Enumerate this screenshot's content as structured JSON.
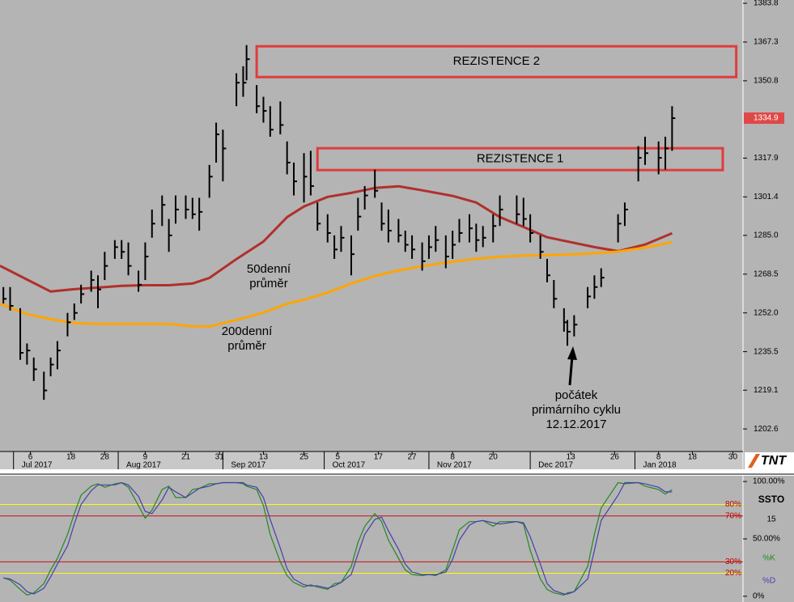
{
  "chart_data": [
    {
      "type": "ohlc",
      "xlim": [
        "2017-06-27",
        "2018-02-02"
      ],
      "ylim": [
        1193,
        1385.2
      ],
      "yticks": [
        1383.8,
        1367.3,
        1350.8,
        1317.9,
        1301.4,
        {
          "value": 1285,
          "label": "1285.0"
        },
        1268.5,
        {
          "value": 1252,
          "label": "1252.0"
        },
        1235.5,
        1219.1,
        1202.6
      ],
      "xticks": [
        {
          "value": "2017-07-06",
          "label": "6"
        },
        {
          "value": "2017-07-18",
          "label": "18"
        },
        {
          "value": "2017-07-28",
          "label": "28"
        },
        {
          "value": "2017-08-09",
          "label": "9"
        },
        {
          "value": "2017-08-21",
          "label": "21"
        },
        {
          "value": "2017-08-31",
          "label": "31"
        },
        {
          "value": "2017-09-13",
          "label": "13"
        },
        {
          "value": "2017-09-25",
          "label": "25"
        },
        {
          "value": "2017-10-05",
          "label": "5"
        },
        {
          "value": "2017-10-17",
          "label": "17"
        },
        {
          "value": "2017-10-27",
          "label": "27"
        },
        {
          "value": "2017-11-08",
          "label": "8"
        },
        {
          "value": "2017-11-20",
          "label": "20"
        },
        {
          "value": "2017-12-13",
          "label": "13"
        },
        {
          "value": "2017-12-26",
          "label": "26"
        },
        {
          "value": "2018-01-08",
          "label": "8"
        },
        {
          "value": "2018-01-18",
          "label": "18"
        },
        {
          "value": "2018-01-30",
          "label": "30"
        }
      ],
      "xmonths": [
        {
          "value": "2017-07-01",
          "label": "Jul 2017"
        },
        {
          "value": "2017-08-01",
          "label": "Aug 2017"
        },
        {
          "value": "2017-09-01",
          "label": "Sep 2017"
        },
        {
          "value": "2017-10-01",
          "label": "Oct 2017"
        },
        {
          "value": "2017-11-01",
          "label": "Nov 2017"
        },
        {
          "value": "2017-12-01",
          "label": "Dec 2017"
        },
        {
          "value": "2018-01-01",
          "label": "Jan 2018"
        }
      ],
      "color": "#000000",
      "last_price_color": "#e04848",
      "x": [
        "2017-06-28",
        "2017-06-30",
        "2017-07-03",
        "2017-07-05",
        "2017-07-07",
        "2017-07-10",
        "2017-07-12",
        "2017-07-14",
        "2017-07-17",
        "2017-07-19",
        "2017-07-21",
        "2017-07-24",
        "2017-07-26",
        "2017-07-28",
        "2017-07-31",
        "2017-08-02",
        "2017-08-04",
        "2017-08-07",
        "2017-08-09",
        "2017-08-11",
        "2017-08-14",
        "2017-08-16",
        "2017-08-18",
        "2017-08-21",
        "2017-08-23",
        "2017-08-25",
        "2017-08-28",
        "2017-08-30",
        "2017-09-01",
        "2017-09-05",
        "2017-09-07",
        "2017-09-08",
        "2017-09-11",
        "2017-09-13",
        "2017-09-15",
        "2017-09-18",
        "2017-09-20",
        "2017-09-22",
        "2017-09-25",
        "2017-09-27",
        "2017-09-29",
        "2017-10-02",
        "2017-10-04",
        "2017-10-06",
        "2017-10-09",
        "2017-10-11",
        "2017-10-13",
        "2017-10-16",
        "2017-10-18",
        "2017-10-20",
        "2017-10-23",
        "2017-10-25",
        "2017-10-27",
        "2017-10-30",
        "2017-11-01",
        "2017-11-03",
        "2017-11-06",
        "2017-11-08",
        "2017-11-10",
        "2017-11-13",
        "2017-11-15",
        "2017-11-17",
        "2017-11-20",
        "2017-11-22",
        "2017-11-27",
        "2017-11-29",
        "2017-12-01",
        "2017-12-04",
        "2017-12-06",
        "2017-12-08",
        "2017-12-11",
        "2017-12-12",
        "2017-12-14",
        "2017-12-18",
        "2017-12-20",
        "2017-12-22",
        "2017-12-27",
        "2017-12-29",
        "2018-01-02",
        "2018-01-04",
        "2018-01-08",
        "2018-01-10",
        "2018-01-12"
      ],
      "high": [
        1263,
        1263,
        1254,
        1239,
        1233,
        1227,
        1233,
        1240,
        1252,
        1256,
        1264,
        1270,
        1268,
        1278,
        1283,
        1283,
        1282,
        1270,
        1282,
        1296,
        1302,
        1292,
        1302,
        1302,
        1301,
        1301,
        1315,
        1333,
        1330,
        1354,
        1357,
        1366,
        1349,
        1344,
        1340,
        1342,
        1325,
        1316,
        1320,
        1321,
        1299,
        1294,
        1285,
        1289,
        1285,
        1301,
        1306,
        1313,
        1299,
        1296,
        1292,
        1287,
        1285,
        1282,
        1285,
        1289,
        1285,
        1287,
        1292,
        1294,
        1290,
        1289,
        1294,
        1302,
        1302,
        1301,
        1294,
        1285,
        1275,
        1266,
        1254,
        1249,
        1251,
        1263,
        1268,
        1271,
        1294,
        1299,
        1323,
        1327,
        1325,
        1327,
        1340
      ],
      "low": [
        1256,
        1253,
        1232,
        1230,
        1223,
        1215,
        1225,
        1228,
        1242,
        1249,
        1256,
        1261,
        1254,
        1266,
        1275,
        1275,
        1268,
        1261,
        1266,
        1284,
        1289,
        1278,
        1290,
        1292,
        1292,
        1287,
        1301,
        1316,
        1308,
        1340,
        1344,
        1351,
        1337,
        1333,
        1327,
        1328,
        1311,
        1302,
        1299,
        1302,
        1287,
        1282,
        1275,
        1278,
        1268,
        1287,
        1296,
        1301,
        1287,
        1282,
        1282,
        1278,
        1275,
        1270,
        1275,
        1278,
        1271,
        1275,
        1282,
        1282,
        1278,
        1280,
        1282,
        1289,
        1290,
        1289,
        1282,
        1275,
        1265,
        1254,
        1244,
        1238,
        1242,
        1254,
        1258,
        1263,
        1282,
        1289,
        1308,
        1315,
        1311,
        1313,
        1321
      ],
      "close": [
        1258,
        1255,
        1235,
        1236,
        1228,
        1219,
        1230,
        1236,
        1248,
        1252,
        1260,
        1266,
        1262,
        1272,
        1280,
        1278,
        1272,
        1264,
        1276,
        1290,
        1298,
        1285,
        1296,
        1296,
        1294,
        1295,
        1310,
        1328,
        1322,
        1350,
        1350,
        1360,
        1340,
        1338,
        1330,
        1332,
        1316,
        1308,
        1310,
        1306,
        1290,
        1286,
        1279,
        1284,
        1277,
        1293,
        1302,
        1304,
        1290,
        1287,
        1285,
        1281,
        1279,
        1274,
        1280,
        1283,
        1276,
        1281,
        1286,
        1288,
        1283,
        1284,
        1289,
        1296,
        1294,
        1292,
        1286,
        1278,
        1268,
        1258,
        1248,
        1244,
        1247,
        1259,
        1263,
        1267,
        1290,
        1296,
        1318,
        1320,
        1318,
        1322,
        1334.9
      ],
      "lines_x": [
        "2017-06-27",
        "2017-07-05",
        "2017-07-12",
        "2017-07-19",
        "2017-07-26",
        "2017-08-02",
        "2017-08-09",
        "2017-08-16",
        "2017-08-23",
        "2017-08-28",
        "2017-09-05",
        "2017-09-13",
        "2017-09-20",
        "2017-09-25",
        "2017-10-02",
        "2017-10-09",
        "2017-10-16",
        "2017-10-23",
        "2017-10-30",
        "2017-11-08",
        "2017-11-15",
        "2017-11-22",
        "2017-11-29",
        "2017-12-06",
        "2017-12-14",
        "2017-12-20",
        "2017-12-27",
        "2018-01-04",
        "2018-01-12"
      ],
      "lines": [
        {
          "color": "#b0302c",
          "values": [
            1272.1,
            1266.2,
            1261.1,
            1262.1,
            1262.8,
            1263.5,
            1263.8,
            1263.8,
            1264.5,
            1266.9,
            1274.9,
            1282.4,
            1292.8,
            1297.3,
            1301.4,
            1303.1,
            1305.2,
            1305.9,
            1304.2,
            1301.8,
            1299,
            1292.8,
            1288.6,
            1284.2,
            1281.8,
            1280,
            1278.3,
            1281.1,
            1285.9
          ]
        },
        {
          "color": "#ffa500",
          "values": [
            1255.9,
            1251.5,
            1249.3,
            1247.7,
            1247.3,
            1247.3,
            1247.3,
            1247.3,
            1246.3,
            1246.2,
            1249,
            1252.1,
            1255.9,
            1257.6,
            1260.6,
            1264.5,
            1267.7,
            1270.1,
            1271.9,
            1273.8,
            1275,
            1275.9,
            1276.4,
            1276.6,
            1276.9,
            1277.4,
            1278.1,
            1279.8,
            1282.1
          ]
        }
      ],
      "zones": [
        {
          "label": "REZISTENCE 2",
          "x": [
            "2017-09-11",
            "2018-01-31"
          ],
          "y": [
            1352.4,
            1365.5
          ],
          "color": "#e03c3c"
        },
        {
          "label": "REZISTENCE 1",
          "x": [
            "2017-09-29",
            "2018-01-27"
          ],
          "y": [
            1312.8,
            1322.1
          ],
          "color": "#e03c3c"
        }
      ],
      "annotations": [
        [
          "50denní",
          "průměr"
        ],
        [
          "200denní",
          "průměr"
        ],
        [
          "počátek",
          "primárního cyklu",
          "12.12.2017"
        ]
      ]
    },
    {
      "type": "oscillator",
      "title": "SSTO",
      "period": 15,
      "xlim": [
        "2017-06-27",
        "2018-02-02"
      ],
      "ylim": [
        -5,
        105
      ],
      "yticks": [
        {
          "value": 100,
          "label": "100.00%"
        },
        {
          "value": 50,
          "label": "50.00%"
        },
        {
          "value": 0,
          "label": "0%"
        }
      ],
      "levels": [
        {
          "value": 80,
          "label": "80%",
          "color": "#ffff00"
        },
        {
          "value": 70,
          "label": "70%",
          "color": "#d01010"
        },
        {
          "value": 30,
          "label": "30%",
          "color": "#d01010"
        },
        {
          "value": 20,
          "label": "20%",
          "color": "#ffff00"
        }
      ],
      "x": [
        "2017-06-28",
        "2017-06-30",
        "2017-07-03",
        "2017-07-05",
        "2017-07-07",
        "2017-07-10",
        "2017-07-12",
        "2017-07-14",
        "2017-07-17",
        "2017-07-19",
        "2017-07-21",
        "2017-07-24",
        "2017-07-26",
        "2017-07-28",
        "2017-07-31",
        "2017-08-02",
        "2017-08-04",
        "2017-08-07",
        "2017-08-09",
        "2017-08-11",
        "2017-08-14",
        "2017-08-16",
        "2017-08-18",
        "2017-08-21",
        "2017-08-23",
        "2017-08-25",
        "2017-08-28",
        "2017-08-30",
        "2017-09-01",
        "2017-09-05",
        "2017-09-07",
        "2017-09-08",
        "2017-09-11",
        "2017-09-13",
        "2017-09-15",
        "2017-09-18",
        "2017-09-20",
        "2017-09-22",
        "2017-09-25",
        "2017-09-27",
        "2017-09-29",
        "2017-10-02",
        "2017-10-04",
        "2017-10-06",
        "2017-10-09",
        "2017-10-11",
        "2017-10-13",
        "2017-10-16",
        "2017-10-18",
        "2017-10-20",
        "2017-10-23",
        "2017-10-25",
        "2017-10-27",
        "2017-10-30",
        "2017-11-01",
        "2017-11-03",
        "2017-11-06",
        "2017-11-08",
        "2017-11-10",
        "2017-11-13",
        "2017-11-15",
        "2017-11-17",
        "2017-11-20",
        "2017-11-22",
        "2017-11-27",
        "2017-11-29",
        "2017-12-01",
        "2017-12-04",
        "2017-12-06",
        "2017-12-08",
        "2017-12-11",
        "2017-12-12",
        "2017-12-14",
        "2017-12-18",
        "2017-12-20",
        "2017-12-22",
        "2017-12-27",
        "2017-12-29",
        "2018-01-02",
        "2018-01-04",
        "2018-01-08",
        "2018-01-10",
        "2018-01-12"
      ],
      "series": [
        {
          "name": "%K",
          "color": "#1f8a1f",
          "values": [
            16,
            14,
            6,
            1,
            3,
            11,
            23,
            33,
            54,
            72,
            88,
            96,
            98,
            95,
            98,
            99,
            95,
            79,
            68,
            75,
            93,
            96,
            86,
            86,
            93,
            94,
            98,
            98,
            99,
            99,
            98,
            96,
            93,
            79,
            54,
            30,
            18,
            12,
            8,
            10,
            8,
            6,
            11,
            12,
            26,
            47,
            61,
            72,
            65,
            49,
            33,
            23,
            19,
            18,
            19,
            18,
            23,
            40,
            58,
            65,
            65,
            66,
            61,
            65,
            65,
            63,
            40,
            15,
            6,
            3,
            1,
            3,
            4,
            26,
            54,
            77,
            99,
            98,
            99,
            96,
            93,
            89,
            93
          ]
        },
        {
          "name": "%D",
          "color": "#4a3cb0",
          "values": [
            16,
            15,
            10,
            4,
            2,
            7,
            17,
            28,
            44,
            63,
            80,
            92,
            97,
            97,
            97,
            99,
            97,
            87,
            74,
            72,
            84,
            95,
            91,
            86,
            90,
            94,
            96,
            98,
            99,
            99,
            99,
            97,
            95,
            86,
            67,
            42,
            24,
            15,
            10,
            9,
            9,
            7,
            9,
            12,
            19,
            37,
            54,
            67,
            69,
            57,
            41,
            28,
            21,
            19,
            19,
            19,
            21,
            32,
            49,
            62,
            65,
            66,
            64,
            63,
            65,
            64,
            52,
            28,
            11,
            5,
            2,
            2,
            4,
            15,
            40,
            66,
            88,
            99,
            99,
            98,
            95,
            91,
            91
          ]
        }
      ]
    }
  ],
  "logo": "TNT"
}
